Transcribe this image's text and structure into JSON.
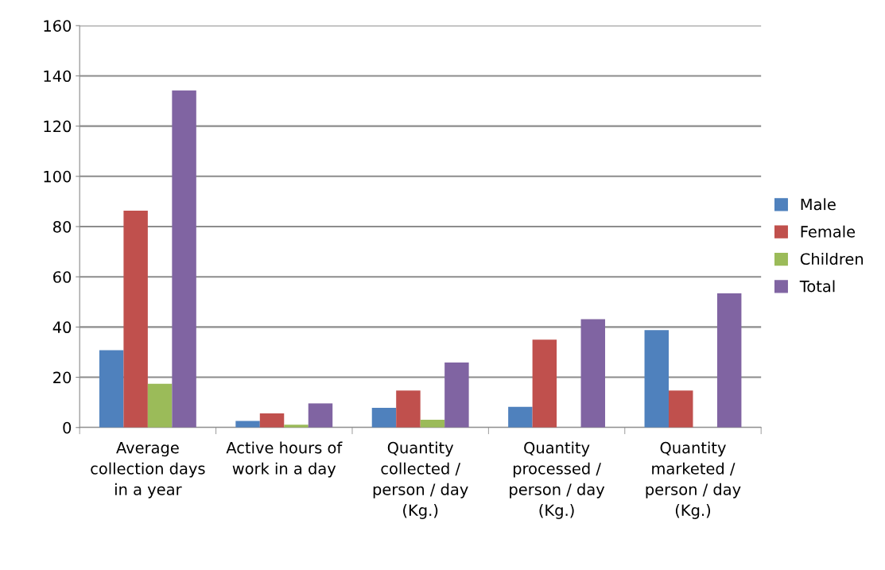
{
  "chart_data": {
    "type": "bar",
    "categories": [
      "Average collection days in a year",
      "Active hours of work in a day",
      "Quantity collected / person / day (Kg.)",
      "Quantity processed / person / day (Kg.)",
      "Quantity marketed / person / day (Kg.)"
    ],
    "series": [
      {
        "name": "Male",
        "color": "#4f81bd",
        "values": [
          30.8,
          2.6,
          7.8,
          8.2,
          38.8
        ]
      },
      {
        "name": "Female",
        "color": "#c0504d",
        "values": [
          86.3,
          5.6,
          14.7,
          35,
          14.7
        ]
      },
      {
        "name": "Children",
        "color": "#9bbb59",
        "values": [
          17.4,
          1.1,
          3.1,
          null,
          null
        ]
      },
      {
        "name": "Total",
        "color": "#8064a2",
        "values": [
          134.2,
          9.6,
          25.9,
          43.1,
          53.4
        ]
      }
    ],
    "ylim": [
      0,
      160
    ],
    "yticks": [
      0,
      20,
      40,
      60,
      80,
      100,
      120,
      140,
      160
    ],
    "grid": "y",
    "legend": "right"
  }
}
